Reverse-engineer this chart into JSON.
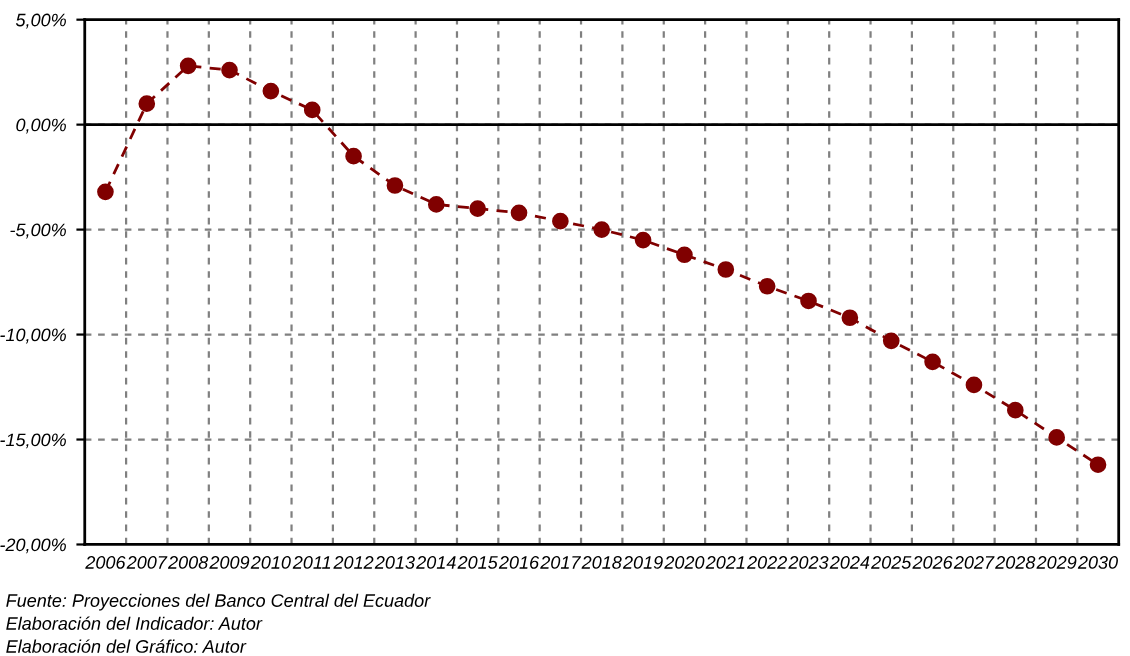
{
  "chart_data": {
    "type": "line",
    "categories": [
      "2006",
      "2007",
      "2008",
      "2009",
      "2010",
      "2011",
      "2012",
      "2013",
      "2014",
      "2015",
      "2016",
      "2017",
      "2018",
      "2019",
      "2020",
      "2021",
      "2022",
      "2023",
      "2024",
      "2025",
      "2026",
      "2027",
      "2028",
      "2029",
      "2030"
    ],
    "series": [
      {
        "color": "#800000",
        "values": [
          -3.2,
          1.0,
          2.8,
          2.6,
          1.6,
          0.7,
          -1.5,
          -2.9,
          -3.8,
          -4.0,
          -4.2,
          -4.6,
          -5.0,
          -5.5,
          -6.2,
          -6.9,
          -7.7,
          -8.4,
          -9.2,
          -10.3,
          -11.3,
          -12.4,
          -13.6,
          -14.9,
          -16.2
        ]
      }
    ],
    "ylim": [
      -20,
      5
    ],
    "yticks": [
      {
        "value": -20,
        "label": "-20,00%"
      },
      {
        "value": -15,
        "label": "-15,00%"
      },
      {
        "value": -10,
        "label": "-10,00%"
      },
      {
        "value": -5,
        "label": "-5,00%"
      },
      {
        "value": 0,
        "label": "0,00%"
      },
      {
        "value": 5,
        "label": "5,00%"
      }
    ],
    "ref_lines": [
      {
        "axis": "y",
        "value": 0,
        "color": "#000000",
        "line_style": "solid"
      }
    ],
    "grid": true,
    "legend": false,
    "marker": "circle",
    "line_style": "dashed",
    "annotations": [
      "Fuente: Proyecciones del Banco Central del Ecuador",
      "Elaboración del Indicador: Autor",
      "Elaboración del Gráfico: Autor"
    ]
  }
}
